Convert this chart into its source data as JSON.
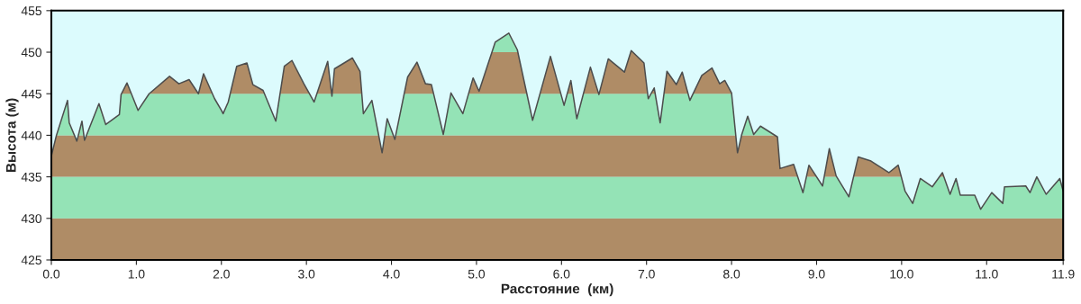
{
  "chart_data": {
    "type": "area",
    "xlabel": "Расстояние  (км)",
    "ylabel": "Высота (м)",
    "x": [
      0.0,
      0.06,
      0.19,
      0.21,
      0.3,
      0.36,
      0.39,
      0.56,
      0.64,
      0.8,
      0.82,
      0.89,
      1.02,
      1.15,
      1.39,
      1.5,
      1.62,
      1.73,
      1.79,
      1.92,
      2.0,
      2.02,
      2.08,
      2.18,
      2.3,
      2.37,
      2.49,
      2.64,
      2.74,
      2.83,
      2.97,
      3.09,
      3.25,
      3.3,
      3.33,
      3.54,
      3.63,
      3.67,
      3.77,
      3.89,
      3.95,
      4.04,
      4.19,
      4.3,
      4.4,
      4.47,
      4.61,
      4.7,
      4.84,
      4.96,
      5.03,
      5.22,
      5.38,
      5.48,
      5.66,
      5.87,
      6.03,
      6.11,
      6.18,
      6.34,
      6.44,
      6.55,
      6.74,
      6.82,
      6.97,
      7.02,
      7.09,
      7.16,
      7.24,
      7.35,
      7.42,
      7.51,
      7.65,
      7.77,
      7.86,
      7.92,
      8.0,
      8.07,
      8.12,
      8.19,
      8.26,
      8.34,
      8.54,
      8.57,
      8.73,
      8.84,
      8.91,
      9.07,
      9.15,
      9.23,
      9.38,
      9.49,
      9.64,
      9.85,
      9.96,
      10.04,
      10.13,
      10.22,
      10.36,
      10.48,
      10.57,
      10.64,
      10.69,
      10.86,
      10.93,
      11.06,
      11.19,
      11.21,
      11.46,
      11.51,
      11.59,
      11.7,
      11.86,
      11.9
    ],
    "series": [
      {
        "color": "#4d4d4d",
        "values": [
          437.5,
          440.0,
          444.2,
          441.5,
          439.3,
          441.7,
          439.4,
          443.8,
          441.3,
          442.5,
          444.9,
          446.3,
          443.0,
          445.0,
          447.1,
          446.2,
          446.7,
          445.0,
          447.4,
          444.4,
          443.0,
          442.6,
          444.0,
          448.3,
          448.7,
          446.1,
          445.4,
          441.7,
          448.3,
          449.0,
          446.2,
          444.0,
          448.9,
          444.7,
          448.0,
          449.3,
          447.7,
          442.6,
          444.2,
          437.9,
          442.0,
          439.5,
          447.0,
          448.8,
          446.2,
          446.1,
          440.1,
          445.1,
          442.6,
          446.9,
          445.3,
          451.2,
          452.3,
          450.3,
          441.8,
          449.5,
          443.6,
          446.6,
          442.0,
          448.2,
          444.9,
          449.2,
          447.6,
          450.2,
          448.7,
          444.4,
          445.7,
          441.5,
          447.7,
          446.1,
          447.6,
          444.2,
          447.2,
          448.1,
          446.2,
          446.6,
          445.1,
          437.9,
          440.1,
          442.3,
          440.1,
          441.1,
          439.8,
          436.0,
          436.5,
          433.1,
          436.4,
          433.9,
          438.4,
          435.1,
          432.6,
          437.4,
          436.9,
          435.5,
          436.4,
          433.3,
          431.8,
          434.8,
          433.8,
          435.5,
          432.9,
          434.8,
          432.8,
          432.8,
          431.1,
          433.1,
          431.8,
          433.8,
          433.9,
          433.1,
          435.0,
          432.9,
          434.8,
          433.3
        ]
      }
    ],
    "xlim": [
      0,
      11.9
    ],
    "ylim": [
      425,
      455
    ],
    "xticks": [
      {
        "value": 0,
        "label": "0.0"
      },
      {
        "value": 1,
        "label": "1.0"
      },
      {
        "value": 2,
        "label": "2.0"
      },
      {
        "value": 3,
        "label": "3.0"
      },
      {
        "value": 4,
        "label": "4.0"
      },
      {
        "value": 5,
        "label": "5.0"
      },
      {
        "value": 6,
        "label": "6.0"
      },
      {
        "value": 7,
        "label": "7.0"
      },
      {
        "value": 8,
        "label": "8.0"
      },
      {
        "value": 9,
        "label": "9.0"
      },
      {
        "value": 10,
        "label": "10.0"
      },
      {
        "value": 11,
        "label": "11.0"
      },
      {
        "value": 11.9,
        "label": "11.9"
      }
    ],
    "yticks": [
      425,
      430,
      435,
      440,
      445,
      450,
      455
    ],
    "bands": [
      {
        "axis": "y",
        "from": 425,
        "to": 430,
        "color": "#b89269"
      },
      {
        "axis": "y",
        "from": 430,
        "to": 435,
        "color": "#9bf0bf"
      },
      {
        "axis": "y",
        "from": 435,
        "to": 440,
        "color": "#b89269"
      },
      {
        "axis": "y",
        "from": 440,
        "to": 445,
        "color": "#9bf0bf"
      },
      {
        "axis": "y",
        "from": 445,
        "to": 450,
        "color": "#b89269"
      },
      {
        "axis": "y",
        "from": 450,
        "to": 455,
        "color": "#9bf0bf"
      }
    ],
    "grid": false
  }
}
